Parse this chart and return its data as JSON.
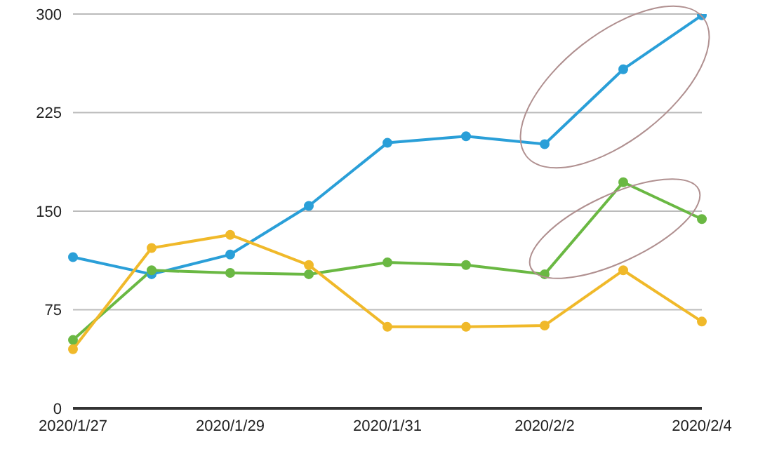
{
  "chart_data": {
    "type": "line",
    "categories": [
      "2020/1/27",
      null,
      "2020/1/29",
      null,
      "2020/1/31",
      null,
      "2020/2/2",
      null,
      "2020/2/4"
    ],
    "series": [
      {
        "color": "#2a9fd8",
        "values": [
          115,
          102,
          117,
          154,
          202,
          207,
          201,
          258,
          299
        ]
      },
      {
        "color": "#6ab843",
        "values": [
          52,
          105,
          103,
          102,
          111,
          109,
          102,
          172,
          144
        ]
      },
      {
        "color": "#f0b92a",
        "values": [
          45,
          122,
          132,
          109,
          62,
          62,
          63,
          105,
          66
        ]
      }
    ],
    "ylim": [
      0,
      300
    ],
    "yticks": [
      0,
      75,
      150,
      225,
      300
    ],
    "grid": "y",
    "marker": "circle",
    "line_style": "solid",
    "legend": false
  }
}
